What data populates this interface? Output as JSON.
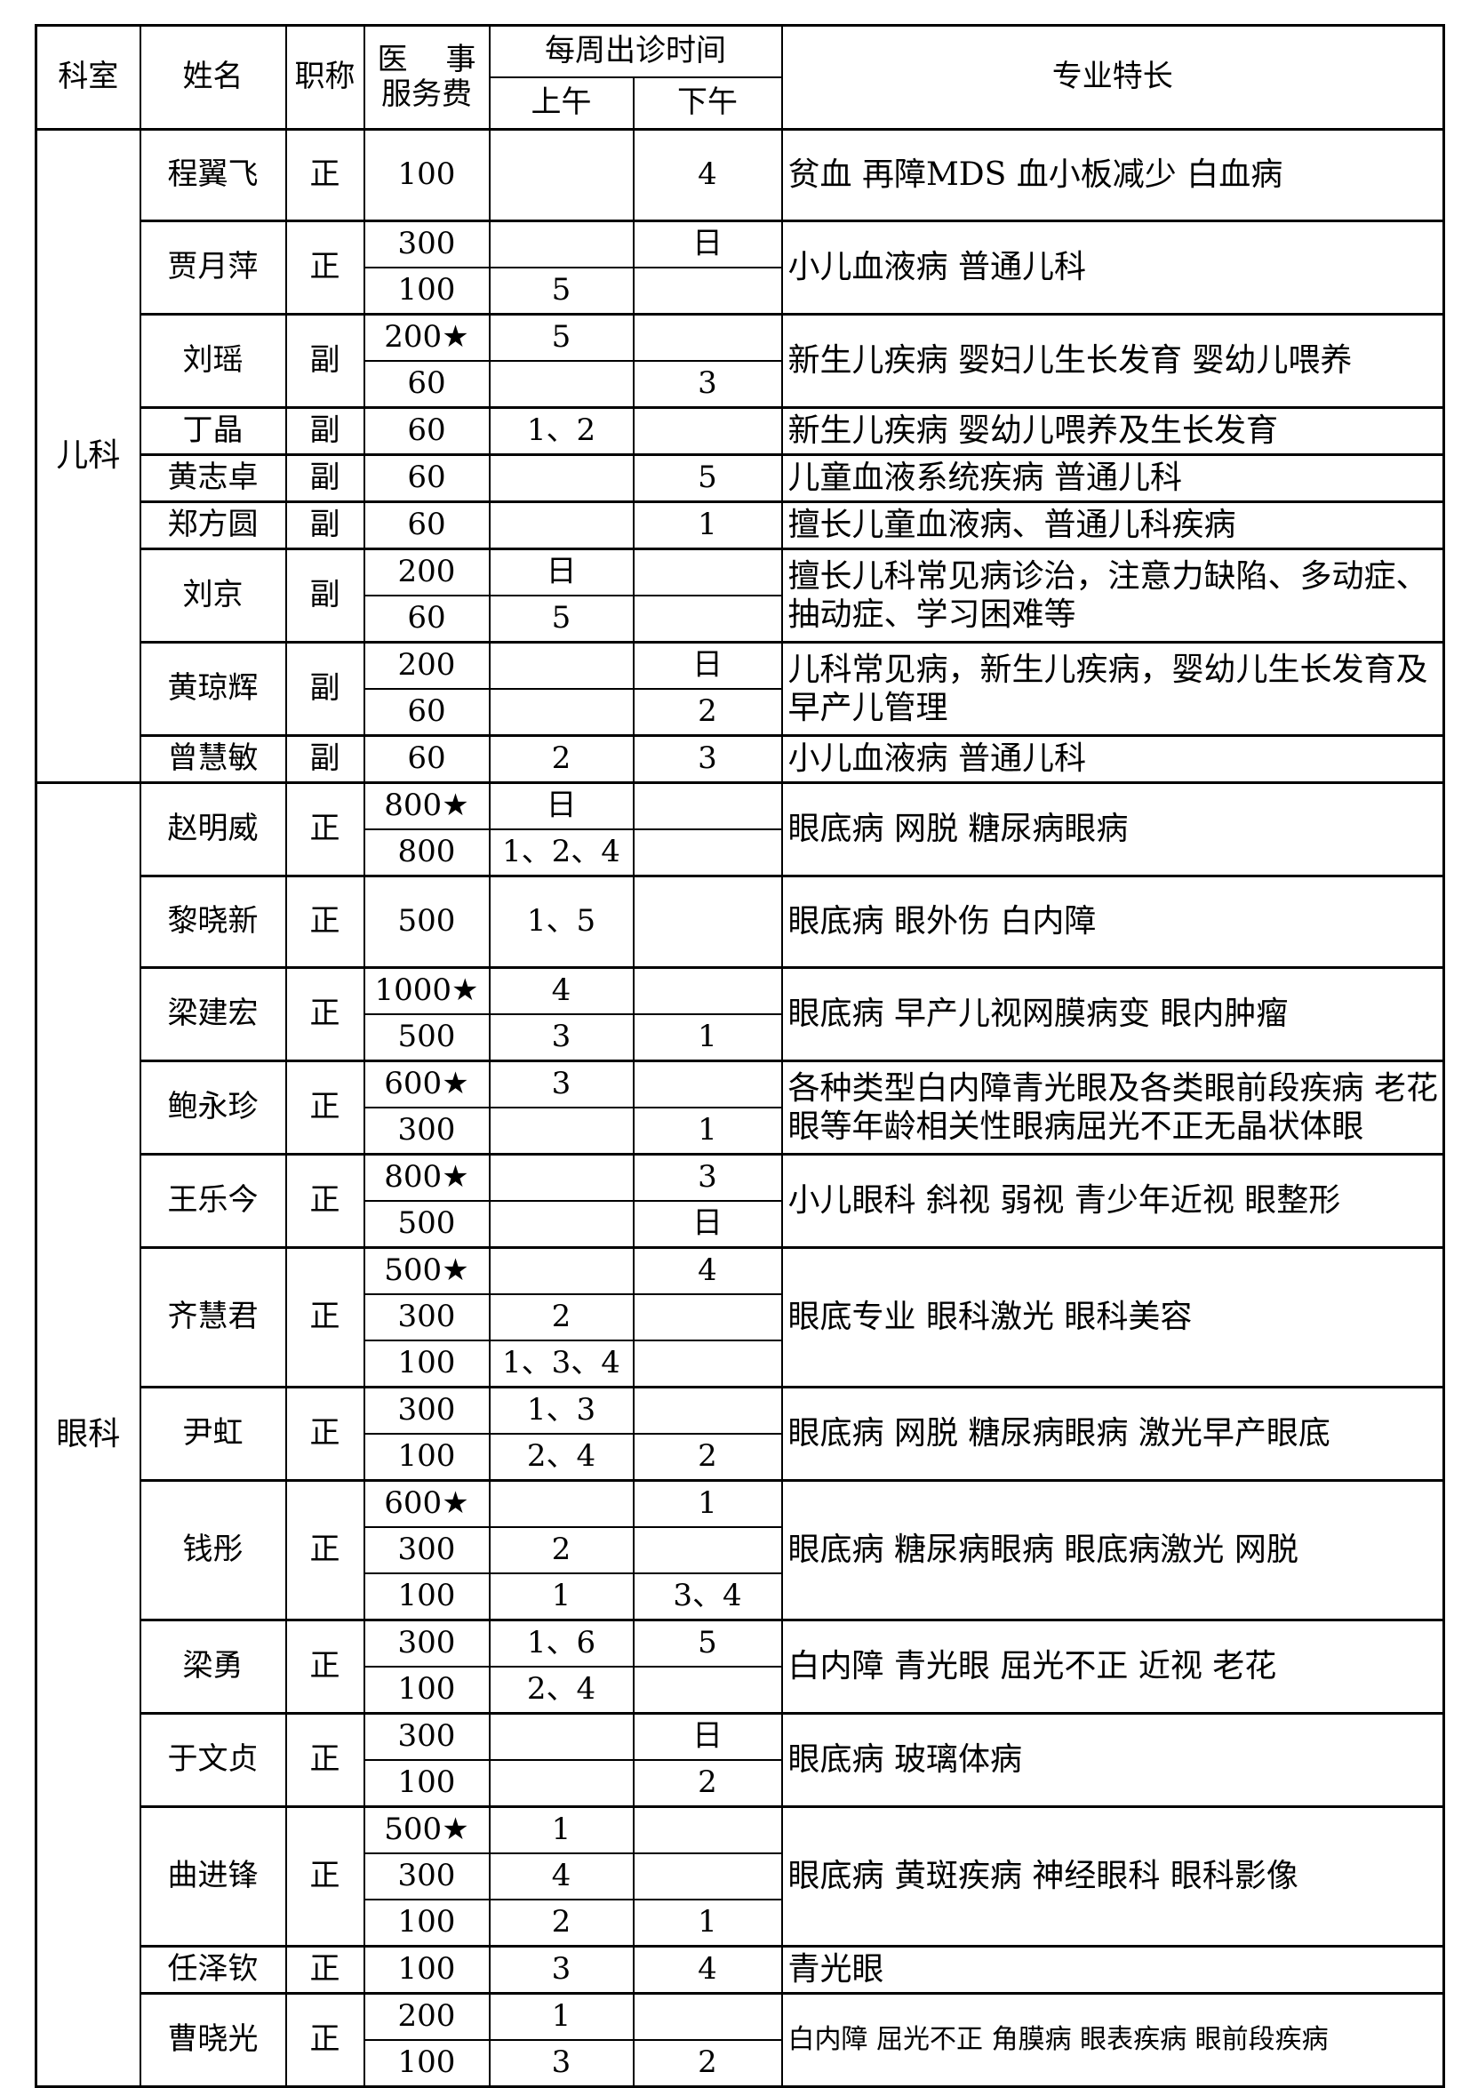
{
  "header": {
    "dept": "科室",
    "name": "姓名",
    "title": "职称",
    "fee_line1_a": "医",
    "fee_line1_b": "事",
    "fee_line2": "服务费",
    "schedule": "每周出诊时间",
    "am": "上午",
    "pm": "下午",
    "specialty": "专业特长"
  },
  "departments": [
    {
      "name": "儿科",
      "doctors": [
        {
          "name": "程翼飞",
          "title": "正",
          "specialty": "贫血 再障MDS 血小板减少 白血病",
          "sessions": [
            {
              "fee": "100",
              "am": "",
              "pm": "4"
            }
          ]
        },
        {
          "name": "贾月萍",
          "title": "正",
          "specialty": "小儿血液病 普通儿科",
          "sessions": [
            {
              "fee": "300",
              "am": "",
              "pm": "日"
            },
            {
              "fee": "100",
              "am": "5",
              "pm": ""
            }
          ]
        },
        {
          "name": "刘瑶",
          "title": "副",
          "specialty": "新生儿疾病 婴妇儿生长发育 婴幼儿喂养",
          "sessions": [
            {
              "fee": "200★",
              "am": "5",
              "pm": ""
            },
            {
              "fee": "60",
              "am": "",
              "pm": "3"
            }
          ]
        },
        {
          "name": "丁晶",
          "title": "副",
          "specialty": "新生儿疾病 婴幼儿喂养及生长发育",
          "sessions": [
            {
              "fee": "60",
              "am": "1、2",
              "pm": ""
            }
          ]
        },
        {
          "name": "黄志卓",
          "title": "副",
          "specialty": "儿童血液系统疾病 普通儿科",
          "sessions": [
            {
              "fee": "60",
              "am": "",
              "pm": "5"
            }
          ]
        },
        {
          "name": "郑方圆",
          "title": "副",
          "specialty": "擅长儿童血液病、普通儿科疾病",
          "sessions": [
            {
              "fee": "60",
              "am": "",
              "pm": "1"
            }
          ]
        },
        {
          "name": "刘京",
          "title": "副",
          "specialty": "擅长儿科常见病诊治，注意力缺陷、多动症、抽动症、学习困难等",
          "sessions": [
            {
              "fee": "200",
              "am": "日",
              "pm": ""
            },
            {
              "fee": "60",
              "am": "5",
              "pm": ""
            }
          ]
        },
        {
          "name": "黄琼辉",
          "title": "副",
          "specialty": "儿科常见病，新生儿疾病，婴幼儿生长发育及早产儿管理",
          "sessions": [
            {
              "fee": "200",
              "am": "",
              "pm": "日"
            },
            {
              "fee": "60",
              "am": "",
              "pm": "2"
            }
          ]
        },
        {
          "name": "曾慧敏",
          "title": "副",
          "specialty": "小儿血液病 普通儿科",
          "sessions": [
            {
              "fee": "60",
              "am": "2",
              "pm": "3"
            }
          ]
        }
      ]
    },
    {
      "name": "眼科",
      "doctors": [
        {
          "name": "赵明威",
          "title": "正",
          "specialty": "眼底病 网脱 糖尿病眼病",
          "sessions": [
            {
              "fee": "800★",
              "am": "日",
              "pm": ""
            },
            {
              "fee": "800",
              "am": "1、2、4",
              "pm": ""
            }
          ]
        },
        {
          "name": "黎晓新",
          "title": "正",
          "specialty": "眼底病 眼外伤 白内障",
          "sessions": [
            {
              "fee": "500",
              "am": "1、5",
              "pm": ""
            }
          ]
        },
        {
          "name": "梁建宏",
          "title": "正",
          "specialty": "眼底病 早产儿视网膜病变 眼内肿瘤",
          "sessions": [
            {
              "fee": "1000★",
              "am": "4",
              "pm": ""
            },
            {
              "fee": "500",
              "am": "3",
              "pm": "1"
            }
          ]
        },
        {
          "name": "鲍永珍",
          "title": "正",
          "specialty": "各种类型白内障青光眼及各类眼前段疾病 老花眼等年龄相关性眼病屈光不正无晶状体眼",
          "sessions": [
            {
              "fee": "600★",
              "am": "3",
              "pm": ""
            },
            {
              "fee": "300",
              "am": "",
              "pm": "1"
            }
          ]
        },
        {
          "name": "王乐今",
          "title": "正",
          "specialty": "小儿眼科 斜视 弱视 青少年近视 眼整形",
          "sessions": [
            {
              "fee": "800★",
              "am": "",
              "pm": "3"
            },
            {
              "fee": "500",
              "am": "",
              "pm": "日"
            }
          ]
        },
        {
          "name": "齐慧君",
          "title": "正",
          "specialty": "眼底专业 眼科激光 眼科美容",
          "sessions": [
            {
              "fee": "500★",
              "am": "",
              "pm": "4"
            },
            {
              "fee": "300",
              "am": "2",
              "pm": ""
            },
            {
              "fee": "100",
              "am": "1、3、4",
              "pm": ""
            }
          ]
        },
        {
          "name": "尹虹",
          "title": "正",
          "specialty": "眼底病 网脱 糖尿病眼病 激光早产眼底",
          "sessions": [
            {
              "fee": "300",
              "am": "1、3",
              "pm": ""
            },
            {
              "fee": "100",
              "am": "2、4",
              "pm": "2"
            }
          ]
        },
        {
          "name": "钱彤",
          "title": "正",
          "specialty": "眼底病 糖尿病眼病 眼底病激光 网脱",
          "sessions": [
            {
              "fee": "600★",
              "am": "",
              "pm": "1"
            },
            {
              "fee": "300",
              "am": "2",
              "pm": ""
            },
            {
              "fee": "100",
              "am": "1",
              "pm": "3、4"
            }
          ]
        },
        {
          "name": "梁勇",
          "title": "正",
          "specialty": "白内障 青光眼 屈光不正 近视 老花",
          "sessions": [
            {
              "fee": "300",
              "am": "1、6",
              "pm": "5"
            },
            {
              "fee": "100",
              "am": "2、4",
              "pm": ""
            }
          ]
        },
        {
          "name": "于文贞",
          "title": "正",
          "specialty": "眼底病 玻璃体病",
          "sessions": [
            {
              "fee": "300",
              "am": "",
              "pm": "日"
            },
            {
              "fee": "100",
              "am": "",
              "pm": "2"
            }
          ]
        },
        {
          "name": "曲进锋",
          "title": "正",
          "specialty": "眼底病 黄斑疾病 神经眼科 眼科影像",
          "sessions": [
            {
              "fee": "500★",
              "am": "1",
              "pm": ""
            },
            {
              "fee": "300",
              "am": "4",
              "pm": ""
            },
            {
              "fee": "100",
              "am": "2",
              "pm": "1"
            }
          ]
        },
        {
          "name": "任泽钦",
          "title": "正",
          "specialty": "青光眼",
          "sessions": [
            {
              "fee": "100",
              "am": "3",
              "pm": "4"
            }
          ]
        },
        {
          "name": "曹晓光",
          "title": "正",
          "specialty": "白内障 屈光不正 角膜病 眼表疾病 眼前段疾病",
          "sessions": [
            {
              "fee": "200",
              "am": "1",
              "pm": ""
            },
            {
              "fee": "100",
              "am": "3",
              "pm": "2"
            }
          ]
        }
      ]
    }
  ]
}
